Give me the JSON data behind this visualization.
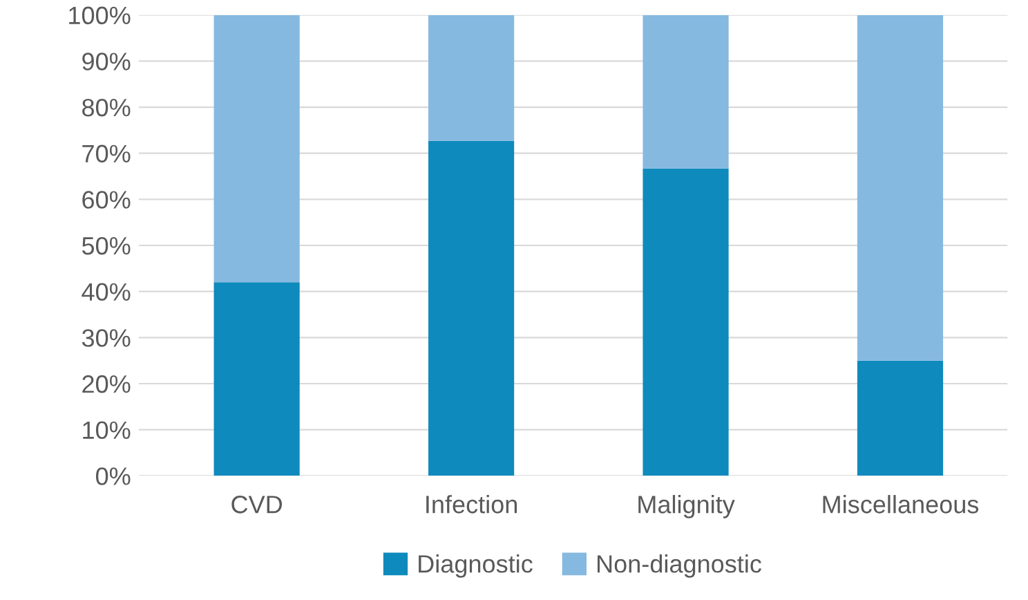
{
  "chart_data": {
    "type": "bar",
    "stacked": true,
    "categories": [
      "CVD",
      "Infection",
      "Malignity",
      "Miscellaneous"
    ],
    "series": [
      {
        "name": "Diagnostic",
        "color": "#0f8abd",
        "values": [
          42,
          72.7,
          66.7,
          25
        ]
      },
      {
        "name": "Non-diagnostic",
        "color": "#86b9e0",
        "values": [
          58,
          27.3,
          33.3,
          75
        ]
      }
    ],
    "ylim": [
      0,
      100
    ],
    "yticks": [
      {
        "value": 0,
        "label": "0%"
      },
      {
        "value": 10,
        "label": "10%"
      },
      {
        "value": 20,
        "label": "20%"
      },
      {
        "value": 30,
        "label": "30%"
      },
      {
        "value": 40,
        "label": "40%"
      },
      {
        "value": 50,
        "label": "50%"
      },
      {
        "value": 60,
        "label": "60%"
      },
      {
        "value": 70,
        "label": "70%"
      },
      {
        "value": 80,
        "label": "80%"
      },
      {
        "value": 90,
        "label": "90%"
      },
      {
        "value": 100,
        "label": "100%"
      }
    ],
    "grid": "y",
    "legend": "bottom"
  }
}
